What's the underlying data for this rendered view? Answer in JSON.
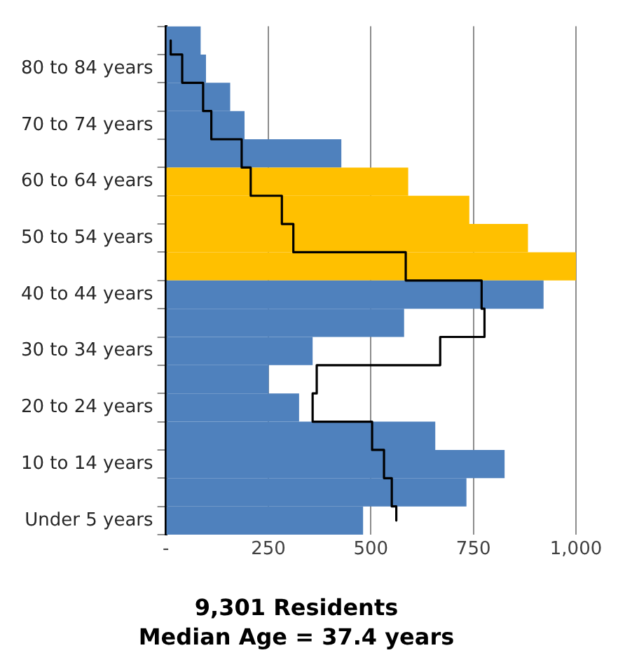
{
  "chart_data": {
    "type": "bar",
    "orientation": "horizontal",
    "title": "9,301 Residents",
    "subtitle": "Median Age = 37.4 years",
    "categories": [
      null,
      "80 to 84 years",
      null,
      "70 to 74 years",
      null,
      "60 to 64 years",
      null,
      "50 to 54 years",
      null,
      "40 to 44 years",
      null,
      "30 to 34 years",
      null,
      "20 to 24 years",
      null,
      "10 to 14 years",
      null,
      "Under 5 years"
    ],
    "series": [
      {
        "colors": [
          "#4f81bd",
          "#4f81bd",
          "#4f81bd",
          "#4f81bd",
          "#4f81bd",
          "#ffc000",
          "#ffc000",
          "#ffc000",
          "#ffc000",
          "#4f81bd",
          "#4f81bd",
          "#4f81bd",
          "#4f81bd",
          "#4f81bd",
          "#4f81bd",
          "#4f81bd",
          "#4f81bd",
          "#4f81bd"
        ],
        "values": [
          85,
          98,
          157,
          192,
          428,
          591,
          740,
          883,
          1000,
          921,
          581,
          358,
          251,
          325,
          657,
          826,
          733,
          481
        ]
      },
      {
        "type": "step",
        "color": "#000000",
        "values": [
          12,
          40,
          91,
          111,
          185,
          207,
          283,
          311,
          585,
          770,
          777,
          669,
          368,
          358,
          503,
          532,
          551,
          562
        ]
      }
    ],
    "xlim": [
      0,
      1000
    ],
    "xticks": [
      {
        "value": 0,
        "label": "-"
      },
      250,
      500,
      750,
      {
        "value": 1000,
        "label": "1,000"
      }
    ],
    "grid": "x"
  }
}
